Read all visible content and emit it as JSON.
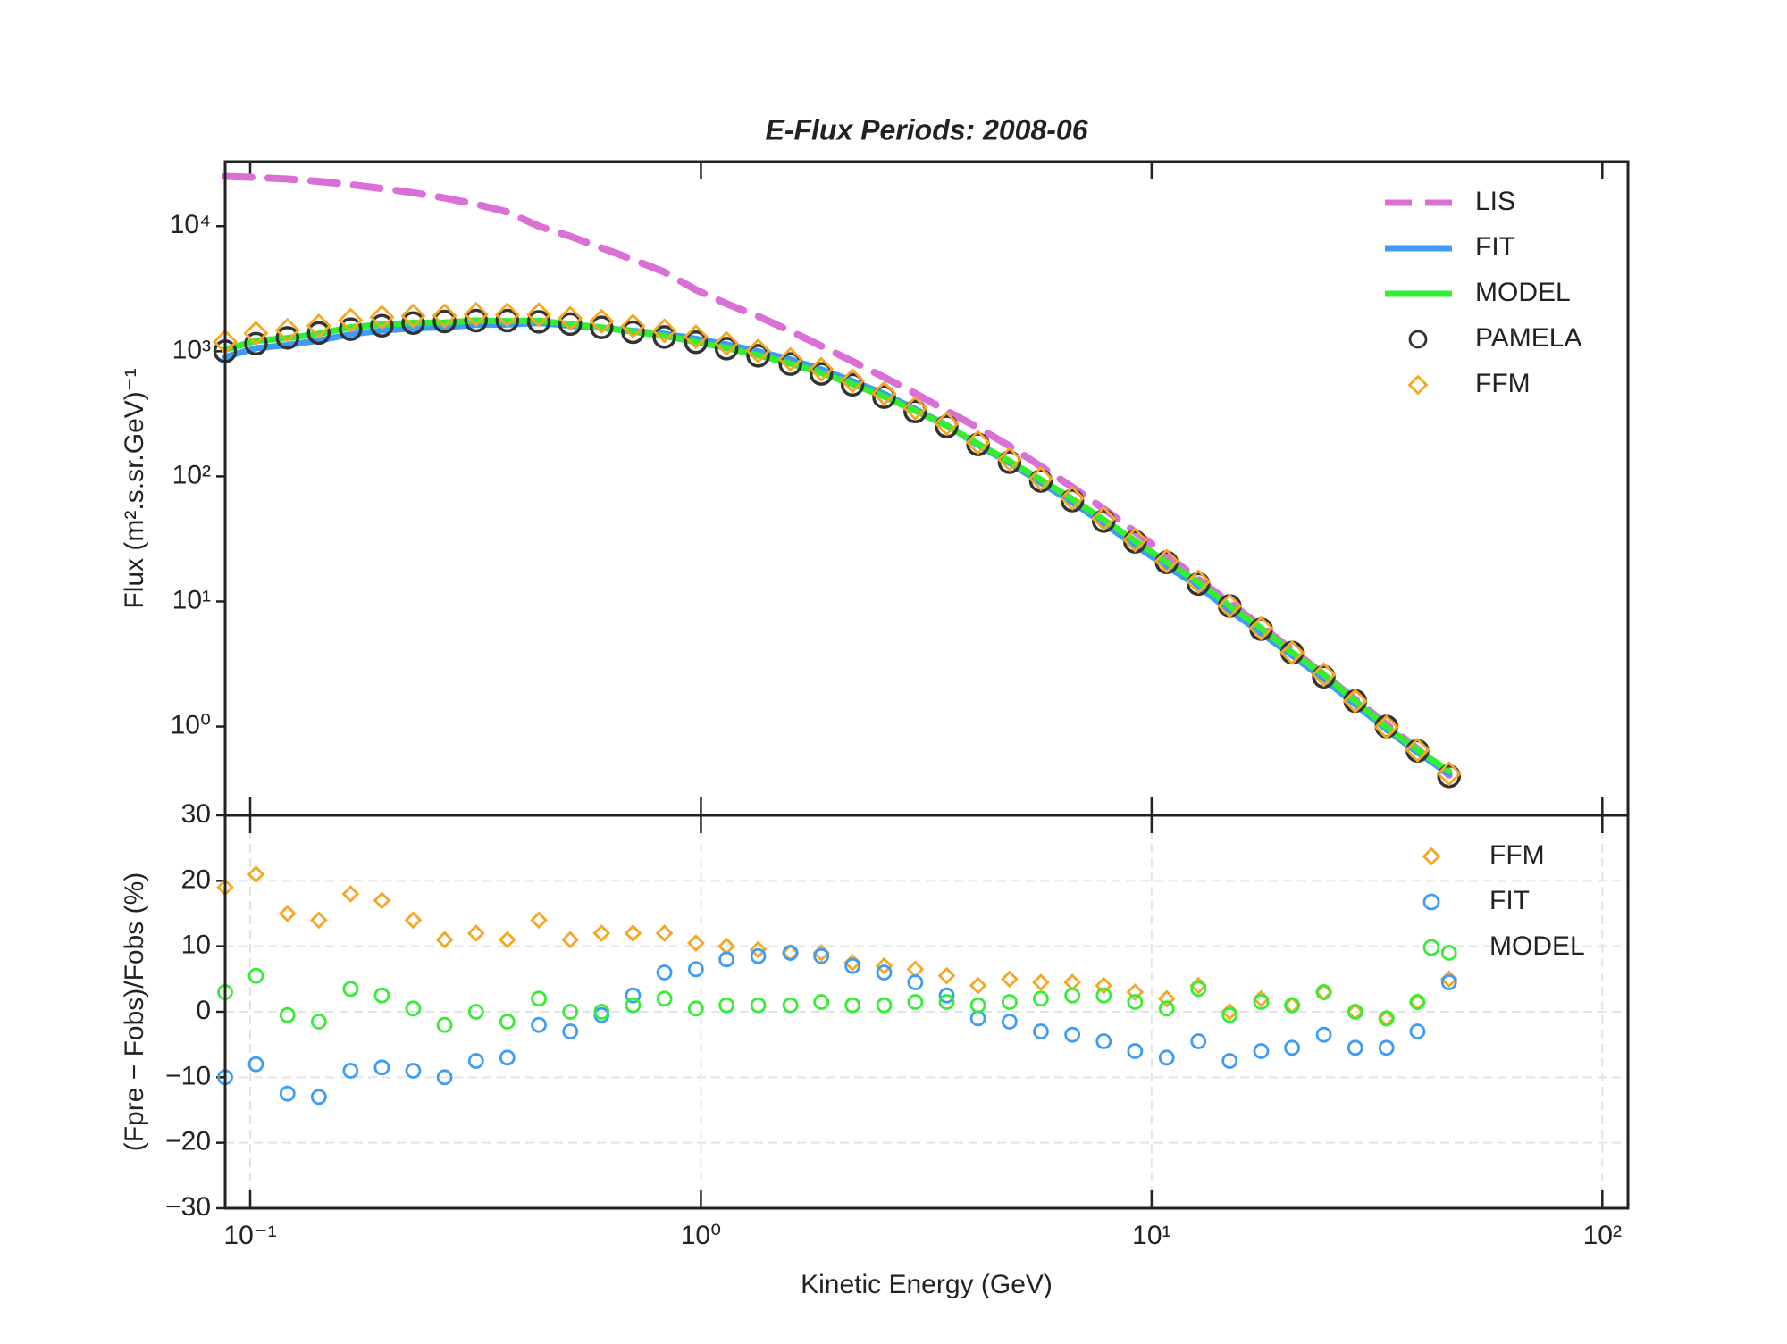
{
  "chart_data": [
    {
      "type": "line",
      "title": "E-Flux Periods: 2008-06",
      "y_label": "Flux (m².s.sr.GeV)⁻¹",
      "xscale": "log",
      "yscale": "log",
      "xlim": [
        0.088,
        114
      ],
      "ylim": [
        0.195,
        32800
      ],
      "yticks": [
        {
          "value": 1,
          "label": "10⁰"
        },
        {
          "value": 10,
          "label": "10¹"
        },
        {
          "value": 100,
          "label": "10²"
        },
        {
          "value": 1000,
          "label": "10³"
        },
        {
          "value": 10000,
          "label": "10⁴"
        }
      ],
      "legend": "upper right",
      "x": [
        0.088,
        0.103,
        0.121,
        0.142,
        0.167,
        0.196,
        0.23,
        0.27,
        0.317,
        0.372,
        0.437,
        0.513,
        0.602,
        0.707,
        0.83,
        0.975,
        1.14,
        1.34,
        1.58,
        1.85,
        2.17,
        2.55,
        2.99,
        3.51,
        4.12,
        4.84,
        5.68,
        6.67,
        7.83,
        9.19,
        10.8,
        12.7,
        14.9,
        17.5,
        20.5,
        24.1,
        28.3,
        33.2,
        38.9,
        45.7
      ],
      "series": [
        {
          "name": "LIS",
          "color": "#da70d6",
          "style": "dashed",
          "values": [
            25000,
            24500,
            23800,
            22800,
            21500,
            20000,
            18500,
            16800,
            15000,
            13000,
            10000,
            8300,
            6700,
            5400,
            4300,
            3100,
            2400,
            1900,
            1450,
            1100,
            830,
            620,
            460,
            335,
            245,
            175,
            120,
            82,
            55,
            36,
            23.5,
            15,
            9.8,
            6.3,
            4.1,
            2.6,
            1.65,
            1.04,
            0.66,
            0.41
          ]
        },
        {
          "name": "FIT",
          "color": "#3d9df5",
          "style": "solid",
          "values": [
            900,
            1058,
            1120,
            1218,
            1365,
            1464,
            1529,
            1557,
            1628,
            1637,
            1686,
            1601,
            1542,
            1456,
            1378,
            1257,
            1134,
            998,
            861,
            716,
            578,
            456,
            345,
            256,
            178,
            128,
            89,
            62,
            42,
            28,
            19.1,
            13.2,
            8.5,
            5.6,
            3.7,
            2.4,
            1.5,
            0.95,
            0.62,
            0.42
          ]
        },
        {
          "name": "MODEL",
          "color": "#33ee33",
          "style": "solid",
          "values": [
            1030,
            1213,
            1274,
            1379,
            1553,
            1640,
            1688,
            1695,
            1760,
            1734,
            1754,
            1650,
            1550,
            1434,
            1326,
            1186,
            1061,
            929,
            798,
            670,
            545,
            434,
            335,
            254,
            182,
            132,
            94,
            66,
            45,
            30.5,
            20.6,
            14.3,
            9.2,
            6.1,
            3.9,
            2.6,
            1.6,
            0.99,
            0.65,
            0.44
          ]
        },
        {
          "name": "PAMELA",
          "color": "#333333",
          "style": "circle",
          "values": [
            1000,
            1150,
            1280,
            1400,
            1500,
            1600,
            1680,
            1730,
            1760,
            1760,
            1720,
            1650,
            1550,
            1420,
            1300,
            1180,
            1050,
            920,
            790,
            660,
            540,
            430,
            330,
            250,
            180,
            130,
            92,
            64,
            44,
            30,
            20.5,
            13.8,
            9.2,
            6.0,
            3.9,
            2.5,
            1.6,
            1.0,
            0.64,
            0.4
          ]
        },
        {
          "name": "FFM",
          "color": "#f5a623",
          "style": "diamond",
          "values": [
            1190,
            1392,
            1472,
            1596,
            1770,
            1872,
            1915,
            1920,
            1971,
            1954,
            1961,
            1832,
            1736,
            1590,
            1456,
            1304,
            1155,
            1007,
            861,
            719,
            581,
            460,
            351,
            264,
            187,
            137,
            96,
            67,
            46,
            31,
            21,
            14.4,
            9.2,
            6.1,
            3.9,
            2.6,
            1.6,
            0.99,
            0.65,
            0.42
          ]
        }
      ]
    },
    {
      "type": "scatter",
      "x_label": "Kinetic Energy (GeV)",
      "y_label": "(Fpre − Fobs)/Fobs (%)",
      "xscale": "log",
      "xlim": [
        0.088,
        114
      ],
      "ylim": [
        -30,
        30
      ],
      "xticks": [
        {
          "value": 0.1,
          "label": "10⁻¹"
        },
        {
          "value": 1,
          "label": "10⁰"
        },
        {
          "value": 10,
          "label": "10¹"
        },
        {
          "value": 100,
          "label": "10²"
        }
      ],
      "yticks": [
        {
          "value": -30,
          "label": "−30"
        },
        {
          "value": -20,
          "label": "−20"
        },
        {
          "value": -10,
          "label": "−10"
        },
        0,
        10,
        20,
        30
      ],
      "grid": true,
      "legend": "upper right",
      "x": [
        0.088,
        0.103,
        0.121,
        0.142,
        0.167,
        0.196,
        0.23,
        0.27,
        0.317,
        0.372,
        0.437,
        0.513,
        0.602,
        0.707,
        0.83,
        0.975,
        1.14,
        1.34,
        1.58,
        1.85,
        2.17,
        2.55,
        2.99,
        3.51,
        4.12,
        4.84,
        5.68,
        6.67,
        7.83,
        9.19,
        10.8,
        12.7,
        14.9,
        17.5,
        20.5,
        24.1,
        28.3,
        33.2,
        38.9,
        45.7
      ],
      "series": [
        {
          "name": "FFM",
          "color": "#f5a623",
          "style": "diamond",
          "values": [
            19,
            21,
            15,
            14,
            18,
            17,
            14,
            11,
            12,
            11,
            14,
            11,
            12,
            12,
            12,
            10.5,
            10,
            9.5,
            9,
            9,
            7.5,
            7,
            6.5,
            5.5,
            4,
            5,
            4.5,
            4.5,
            4,
            3,
            2,
            4,
            0,
            2,
            1,
            3,
            0,
            -1,
            1.5,
            5
          ]
        },
        {
          "name": "FIT",
          "color": "#3d9df5",
          "style": "circle",
          "values": [
            -10,
            -8,
            -12.5,
            -13,
            -9,
            -8.5,
            -9,
            -10,
            -7.5,
            -7,
            -2,
            -3,
            -0.5,
            2.5,
            6,
            6.5,
            8,
            8.5,
            9,
            8.5,
            7,
            6,
            4.5,
            2.5,
            -1,
            -1.5,
            -3,
            -3.5,
            -4.5,
            -6,
            -7,
            -4.5,
            -7.5,
            -6,
            -5.5,
            -3.5,
            -5.5,
            -5.5,
            -3,
            4.5
          ]
        },
        {
          "name": "MODEL",
          "color": "#33ee33",
          "style": "circle",
          "values": [
            3,
            5.5,
            -0.5,
            -1.5,
            3.5,
            2.5,
            0.5,
            -2,
            0,
            -1.5,
            2,
            0,
            0,
            1,
            2,
            0.5,
            1,
            1,
            1,
            1.5,
            1,
            1,
            1.5,
            1.5,
            1,
            1.5,
            2,
            2.5,
            2.5,
            1.5,
            0.5,
            3.5,
            -0.5,
            1.5,
            1,
            3,
            0,
            -1,
            1.5,
            9
          ]
        }
      ]
    }
  ]
}
